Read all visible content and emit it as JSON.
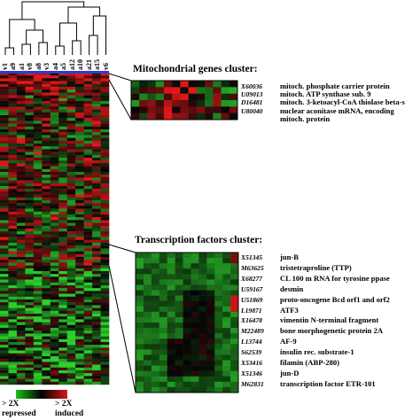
{
  "samples": [
    "v1",
    "a9",
    "a1",
    "v8",
    "a8",
    "v3",
    "a4",
    "a5",
    "a12",
    "a10",
    "a21",
    "a15",
    "v6"
  ],
  "mito_cluster": {
    "title": "Mitochondrial genes cluster:",
    "genes": [
      {
        "id": "X60036",
        "desc": "mitoch. phosphate carrier protein"
      },
      {
        "id": "U09013",
        "desc": "mitoch. ATP synthase sub. 9"
      },
      {
        "id": "D16481",
        "desc": "mitoch. 3-ketoacyl-CoA thiolase beta-s"
      },
      {
        "id": "U80040",
        "desc": "nuclear aconitase mRNA, encoding"
      },
      {
        "id": "",
        "desc": "mitoch. protein"
      }
    ]
  },
  "tf_cluster": {
    "title": "Transcription factors cluster:",
    "genes": [
      {
        "id": "X51345",
        "desc": "jun-B"
      },
      {
        "id": "M63625",
        "desc": "tristetraproline (TTP)"
      },
      {
        "id": "X68277",
        "desc": "CL 100 m RNA for tyrosine ppase"
      },
      {
        "id": "U59167",
        "desc": "desmin"
      },
      {
        "id": "U51869",
        "desc": "proto-oncogene Bcd orf1 and orf2"
      },
      {
        "id": "L19871",
        "desc": "ATF3"
      },
      {
        "id": "X16478",
        "desc": "vimentin N-terminal fragment"
      },
      {
        "id": "M22489",
        "desc": "bone morphogenetic protein 2A"
      },
      {
        "id": "L13744",
        "desc": "AF-9"
      },
      {
        "id": "S62539",
        "desc": "insulin rec. substrate-1"
      },
      {
        "id": "X53416",
        "desc": "filamin (ABP-280)"
      },
      {
        "id": "X51346",
        "desc": "jun-D"
      },
      {
        "id": "M62831",
        "desc": "transcription factor ETR-101"
      }
    ]
  },
  "legend": {
    "repressed_line1": "> 2X",
    "repressed_line2": "repressed",
    "induced_line1": "> 2X",
    "induced_line2": "induced",
    "repressed_color": "#19c219",
    "induced_color": "#d81a1a"
  },
  "colors": {
    "red": "#e01818",
    "green": "#2ccf2c",
    "black": "#050505",
    "sample_bar": "#2a3cd6"
  }
}
